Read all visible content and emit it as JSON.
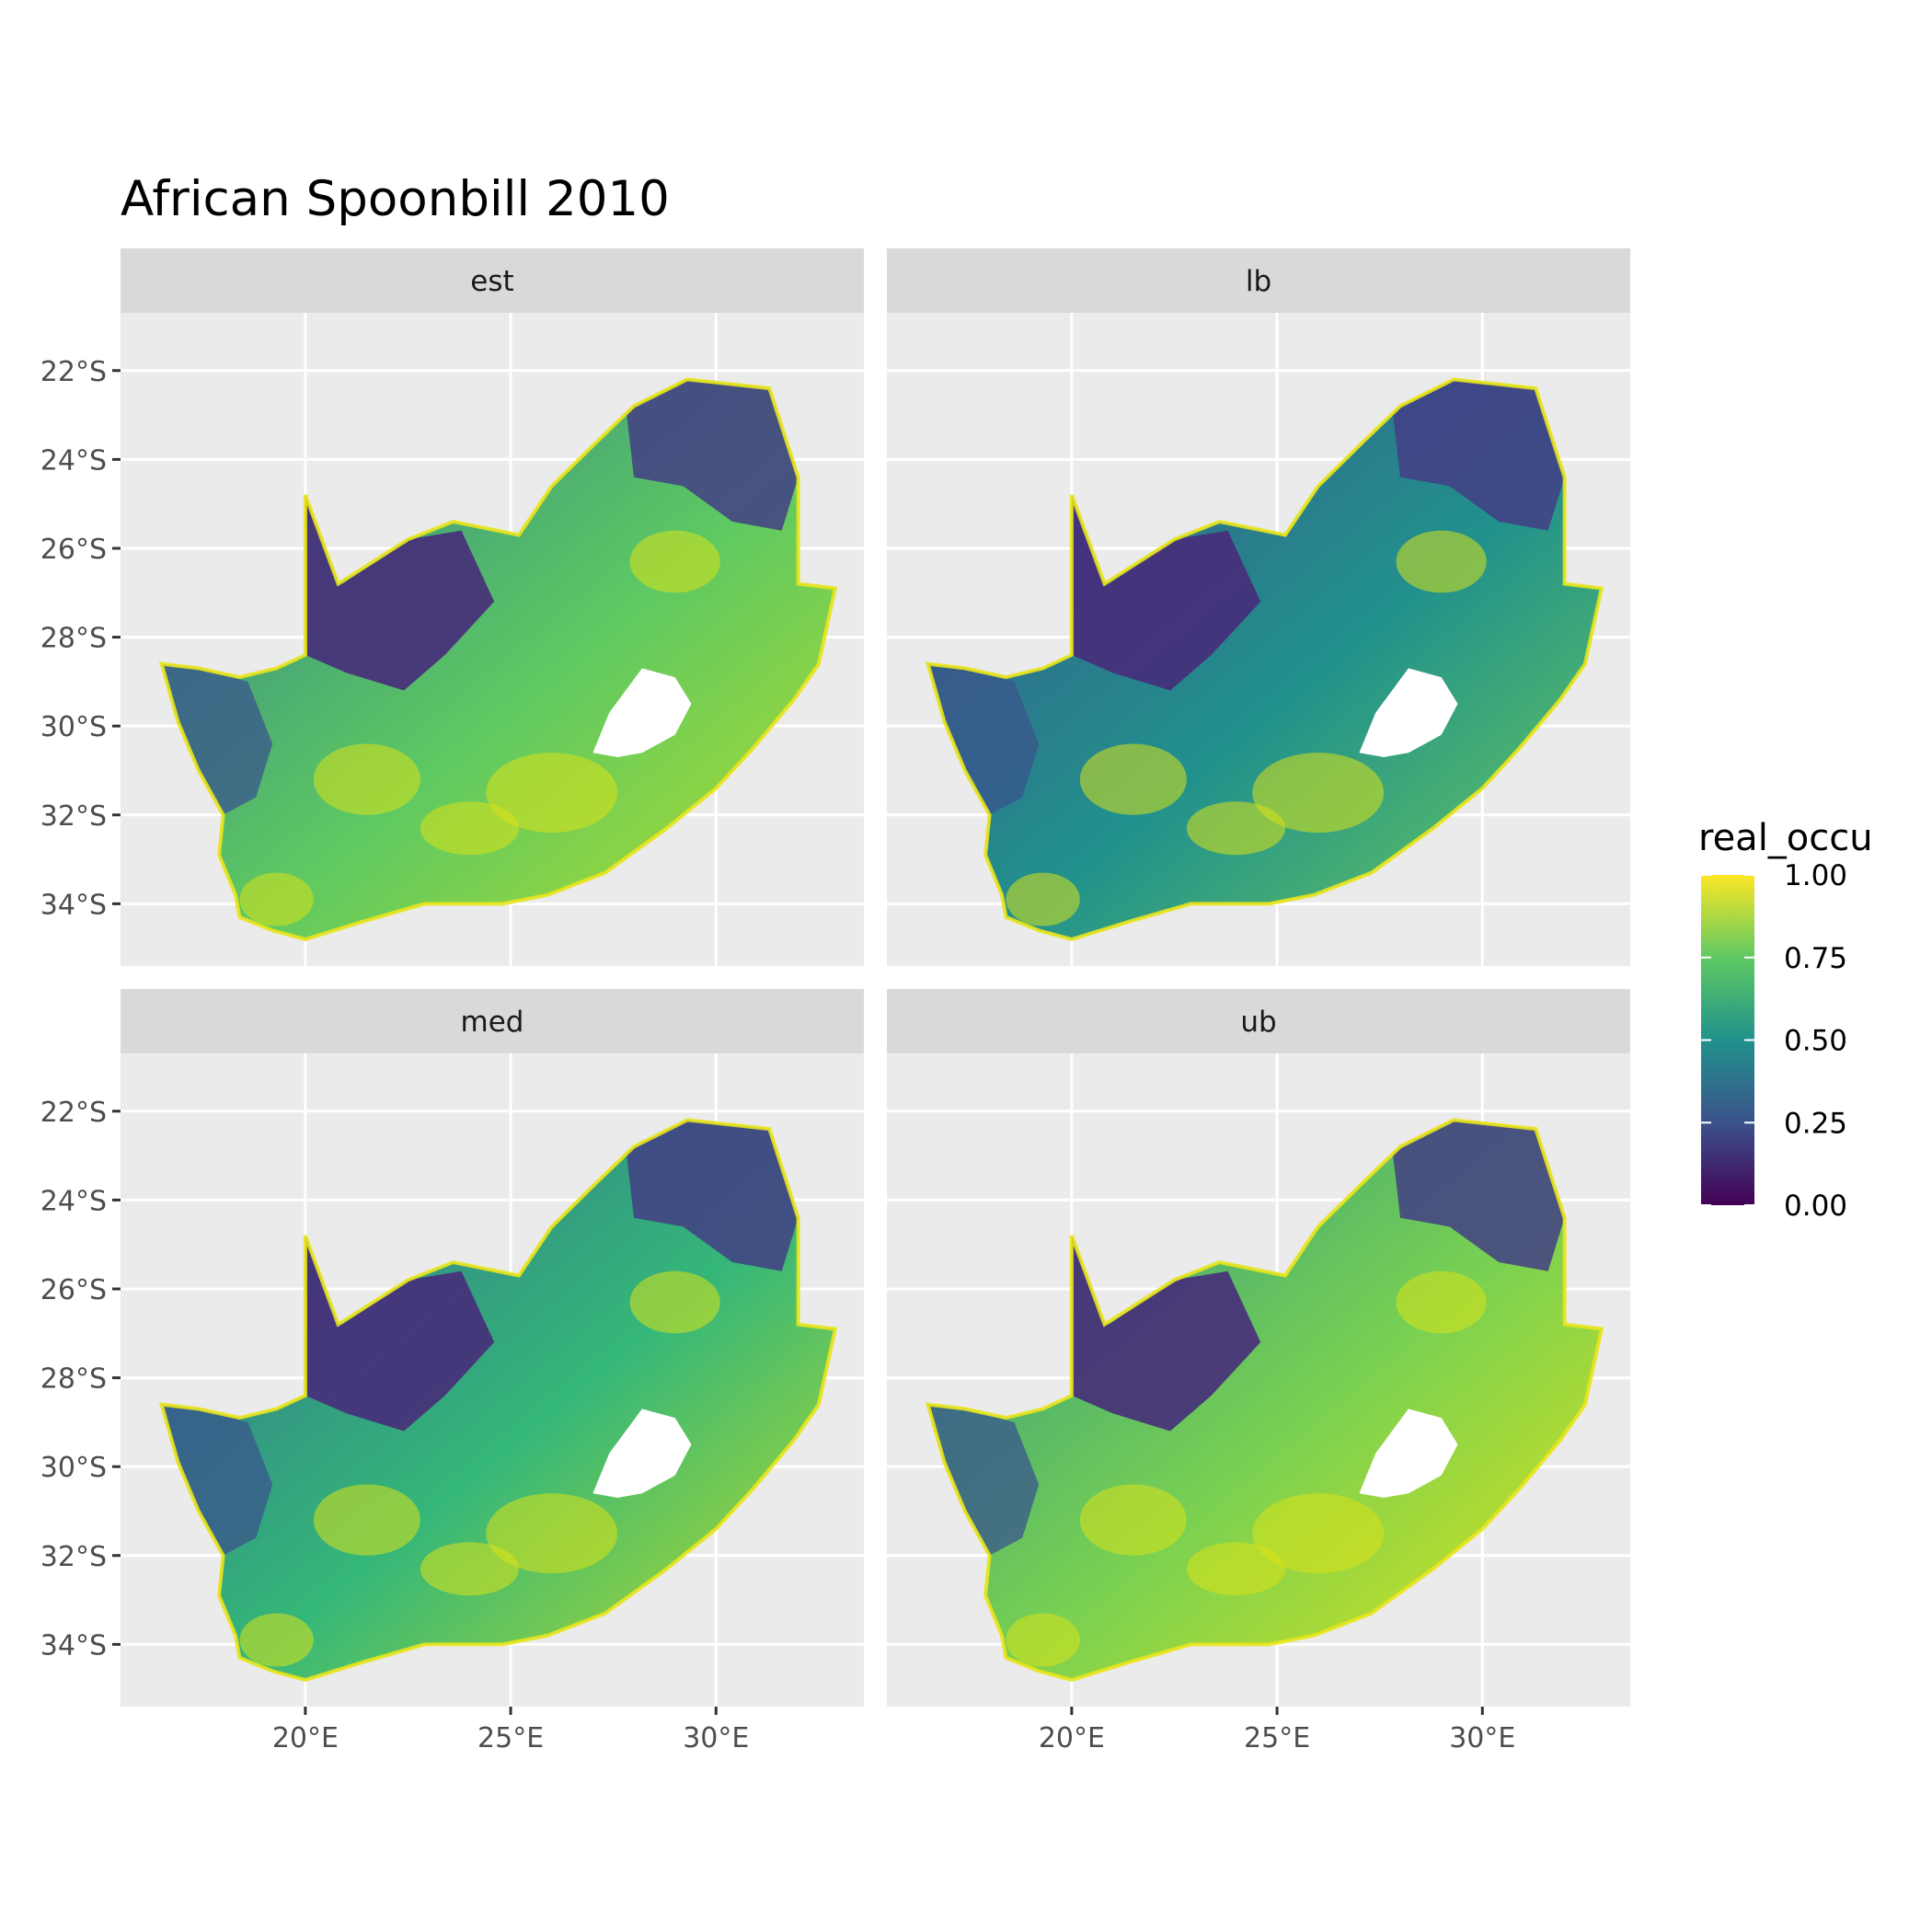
{
  "chart_data": {
    "type": "heatmap",
    "title": "African Spoonbill 2010",
    "xlabel": "",
    "ylabel": "",
    "xlim": [
      15.5,
      33.6
    ],
    "ylim": [
      -35.4,
      -20.7
    ],
    "x_ticks": [
      {
        "value": 20,
        "label": "20°E"
      },
      {
        "value": 25,
        "label": "25°E"
      },
      {
        "value": 30,
        "label": "30°E"
      }
    ],
    "y_ticks": [
      {
        "value": -22,
        "label": "22°S"
      },
      {
        "value": -24,
        "label": "24°S"
      },
      {
        "value": -26,
        "label": "26°S"
      },
      {
        "value": -28,
        "label": "28°S"
      },
      {
        "value": -30,
        "label": "30°S"
      },
      {
        "value": -32,
        "label": "32°S"
      },
      {
        "value": -34,
        "label": "34°S"
      }
    ],
    "grid": true,
    "panels": [
      {
        "label": "est"
      },
      {
        "label": "lb"
      },
      {
        "label": "med"
      },
      {
        "label": "ub"
      }
    ],
    "legend": {
      "title": "real_occu",
      "position": "right",
      "range": [
        0,
        1
      ],
      "breaks": [
        {
          "value": 1.0,
          "label": "1.00"
        },
        {
          "value": 0.75,
          "label": "0.75"
        },
        {
          "value": 0.5,
          "label": "0.50"
        },
        {
          "value": 0.25,
          "label": "0.25"
        },
        {
          "value": 0.0,
          "label": "0.00"
        }
      ],
      "colors": [
        "#440154",
        "#3b528b",
        "#21918c",
        "#5ec962",
        "#fde725"
      ]
    }
  }
}
